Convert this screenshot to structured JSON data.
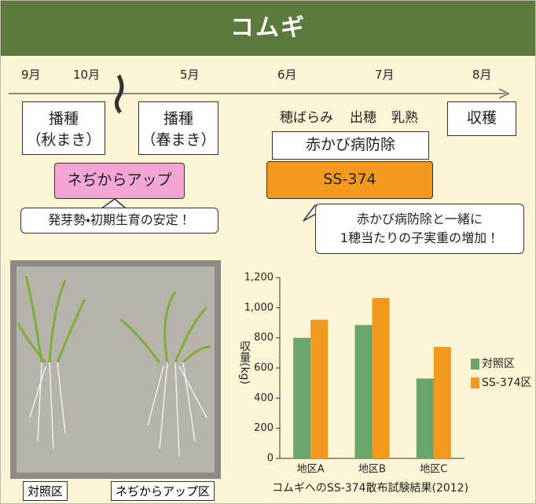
{
  "header": {
    "title": "コムギ"
  },
  "timeline": {
    "months": [
      "9月",
      "10月",
      "5月",
      "6月",
      "7月",
      "8月"
    ],
    "sowing_autumn": [
      "播種",
      "（秋まき）"
    ],
    "sowing_spring": [
      "播種",
      "（春まき）"
    ],
    "stages": [
      "穂ばらみ",
      "出穂",
      "乳熟"
    ],
    "harvest": "収穫",
    "fusarium": "赤かび病防除",
    "ss374": "SS-374",
    "negi": "ネぢからアップ",
    "negi_note": "発芽勢・初期生育の安定！",
    "ss_note": [
      "赤かび病防除と一緒に",
      "1穂当たりの子実重の増加！"
    ]
  },
  "photo": {
    "labels": [
      "対照区",
      "ネぢからアップ区"
    ]
  },
  "chart_data": {
    "type": "bar",
    "categories": [
      "地区A",
      "地区B",
      "地区C"
    ],
    "series": [
      {
        "name": "対照区",
        "color": "#6aa56c",
        "values": [
          800,
          885,
          530
        ]
      },
      {
        "name": "SS-374区",
        "color": "#f39a1e",
        "values": [
          920,
          1065,
          740
        ]
      }
    ],
    "ylim": [
      0,
      1200
    ],
    "yticks": [
      0,
      200,
      400,
      600,
      800,
      {
        "value": 1000,
        "label": "1,000"
      },
      {
        "value": 1200,
        "label": "1,200"
      }
    ],
    "y_label": "収量(kg)",
    "caption": "コムギへのSS-374散布試験結果(2012)"
  }
}
